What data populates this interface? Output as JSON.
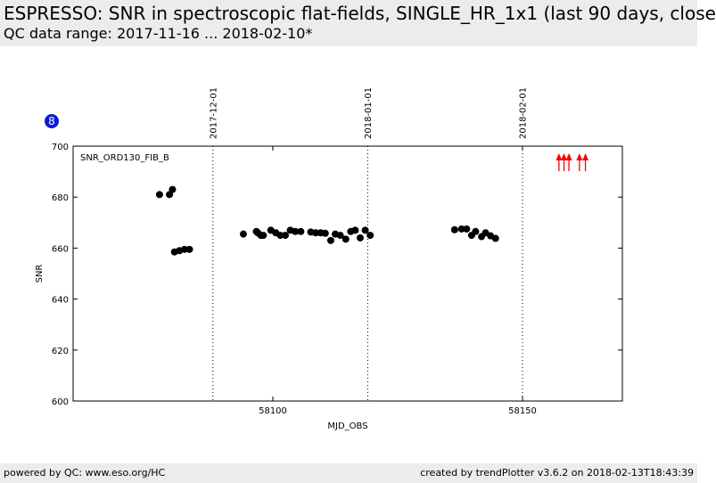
{
  "header": {
    "title": "ESPRESSO: SNR in spectroscopic flat-fields, SINGLE_HR_1x1 (last 90 days, close",
    "subtitle": "QC data range: 2017-11-16 ... 2018-02-10*"
  },
  "badge": "8",
  "footer": {
    "left": "powered by QC: www.eso.org/HC",
    "right": "created by trendPlotter v3.6.2 on 2018-02-13T18:43:39"
  },
  "colors": {
    "points": "#000000",
    "arrows": "#ff0000",
    "badge": "#0a1bd6"
  },
  "chart_data": {
    "type": "scatter",
    "xlabel": "MJD_OBS",
    "ylabel": "SNR",
    "xlim": [
      58060,
      58170
    ],
    "ylim": [
      600,
      700
    ],
    "xticks": [
      58100,
      58150
    ],
    "yticks": [
      600,
      620,
      640,
      660,
      680,
      700
    ],
    "annotation": "SNR_ORD130_FIB_B",
    "date_markers": [
      {
        "x": 58088,
        "label": "2017-12-01"
      },
      {
        "x": 58119,
        "label": "2018-01-01"
      },
      {
        "x": 58150,
        "label": "2018-02-01"
      }
    ],
    "out_of_range_markers": {
      "direction": "up",
      "x": [
        58157.3,
        58158.3,
        58159.3,
        58161.4,
        58162.6
      ]
    },
    "series": [
      {
        "x": [
          58077.3,
          58079.3,
          58079.9,
          58080.3,
          58081.3,
          58082.3,
          58083.3,
          58094.1,
          58096.7,
          58097.0,
          58097.6,
          58098.1,
          58099.6,
          58100.6,
          58101.5,
          58102.5,
          58103.5,
          58104.5,
          58105.6,
          58107.6,
          58108.6,
          58109.6,
          58110.5,
          58111.6,
          58112.5,
          58113.5,
          58114.6,
          58115.6,
          58116.5,
          58117.5,
          58118.5,
          58119.5,
          58136.4,
          58137.8,
          58138.8,
          58139.8,
          58140.6,
          58141.8,
          58142.6,
          58143.6,
          58144.6
        ],
        "y": [
          681,
          681,
          683,
          658.5,
          659,
          659.5,
          659.5,
          665.5,
          666.5,
          666,
          665,
          665,
          667,
          666,
          665,
          665,
          667,
          666.5,
          666.5,
          666.3,
          666,
          666,
          665.8,
          663,
          665.5,
          665,
          663.5,
          666.5,
          667,
          664,
          667,
          665,
          667.2,
          667.5,
          667.5,
          665,
          666.5,
          664.5,
          666,
          664.8,
          663.8
        ]
      }
    ]
  }
}
